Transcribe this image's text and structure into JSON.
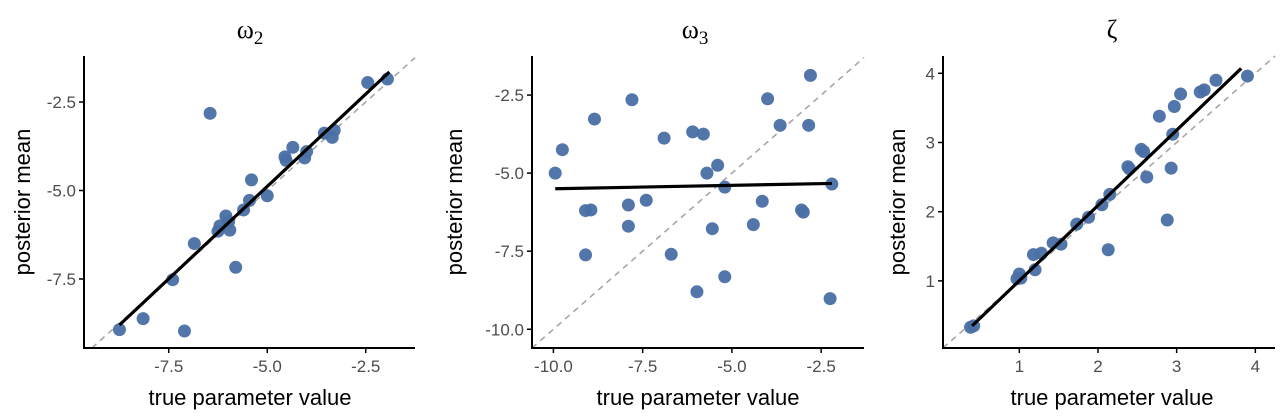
{
  "figure": {
    "point_color": "#4a6fa5",
    "fit_line_color": "#000000",
    "identity_line_color": "#a6a6a6",
    "axis_color": "#000000"
  },
  "chart_data": [
    {
      "type": "scatter",
      "title": "ω2",
      "title_base": "ω",
      "title_sub": "2",
      "xlabel": "true parameter value",
      "ylabel": "posterior mean",
      "xticks": [
        -7.5,
        -5.0,
        -2.5
      ],
      "xtick_labels": [
        "-7.5",
        "-5.0",
        "-2.5"
      ],
      "yticks": [
        -2.5,
        -5.0,
        -7.5
      ],
      "ytick_labels": [
        "-2.5",
        "-5.0",
        "-7.5"
      ],
      "xlim": [
        -9.65,
        -1.25
      ],
      "ylim": [
        -9.45,
        -1.2
      ],
      "grid": false,
      "identity_line": true,
      "fit_line": {
        "x": [
          -8.75,
          -1.9
        ],
        "y": [
          -8.8,
          -1.65
        ]
      },
      "points": [
        {
          "x": -8.75,
          "y": -8.93
        },
        {
          "x": -8.15,
          "y": -8.62
        },
        {
          "x": -7.1,
          "y": -8.97
        },
        {
          "x": -7.4,
          "y": -7.52
        },
        {
          "x": -6.85,
          "y": -6.5
        },
        {
          "x": -5.8,
          "y": -7.17
        },
        {
          "x": -6.45,
          "y": -2.82
        },
        {
          "x": -6.25,
          "y": -6.15
        },
        {
          "x": -6.2,
          "y": -6.0
        },
        {
          "x": -6.05,
          "y": -5.72
        },
        {
          "x": -5.95,
          "y": -6.12
        },
        {
          "x": -5.98,
          "y": -5.88
        },
        {
          "x": -5.6,
          "y": -5.55
        },
        {
          "x": -5.45,
          "y": -5.28
        },
        {
          "x": -5.4,
          "y": -4.7
        },
        {
          "x": -5.0,
          "y": -5.15
        },
        {
          "x": -4.55,
          "y": -4.05
        },
        {
          "x": -4.52,
          "y": -4.15
        },
        {
          "x": -4.35,
          "y": -3.78
        },
        {
          "x": -4.05,
          "y": -4.08
        },
        {
          "x": -4.0,
          "y": -3.9
        },
        {
          "x": -3.55,
          "y": -3.38
        },
        {
          "x": -3.3,
          "y": -3.3
        },
        {
          "x": -3.35,
          "y": -3.5
        },
        {
          "x": -2.45,
          "y": -1.95
        },
        {
          "x": -1.95,
          "y": -1.85
        }
      ]
    },
    {
      "type": "scatter",
      "title": "ω3",
      "title_base": "ω",
      "title_sub": "3",
      "xlabel": "true parameter value",
      "ylabel": "posterior mean",
      "xticks": [
        -10.0,
        -7.5,
        -5.0,
        -2.5
      ],
      "xtick_labels": [
        "-10.0",
        "-7.5",
        "-5.0",
        "-2.5"
      ],
      "yticks": [
        -2.5,
        -5.0,
        -7.5,
        -10.0
      ],
      "ytick_labels": [
        "-2.5",
        "-5.0",
        "-7.5",
        "-10.0"
      ],
      "xlim": [
        -10.6,
        -1.3
      ],
      "ylim": [
        -10.6,
        -1.25
      ],
      "grid": false,
      "identity_line": true,
      "fit_line": {
        "x": [
          -9.95,
          -2.2
        ],
        "y": [
          -5.5,
          -5.33
        ]
      },
      "points": [
        {
          "x": -9.95,
          "y": -5.0
        },
        {
          "x": -9.75,
          "y": -4.25
        },
        {
          "x": -9.1,
          "y": -6.2
        },
        {
          "x": -8.95,
          "y": -6.18
        },
        {
          "x": -9.1,
          "y": -7.62
        },
        {
          "x": -8.85,
          "y": -3.27
        },
        {
          "x": -7.9,
          "y": -6.02
        },
        {
          "x": -7.9,
          "y": -6.7
        },
        {
          "x": -7.8,
          "y": -2.65
        },
        {
          "x": -7.4,
          "y": -5.87
        },
        {
          "x": -6.9,
          "y": -3.88
        },
        {
          "x": -6.7,
          "y": -7.6
        },
        {
          "x": -6.1,
          "y": -3.68
        },
        {
          "x": -5.8,
          "y": -3.75
        },
        {
          "x": -5.98,
          "y": -8.8
        },
        {
          "x": -5.7,
          "y": -5.0
        },
        {
          "x": -5.55,
          "y": -6.78
        },
        {
          "x": -5.4,
          "y": -4.75
        },
        {
          "x": -5.2,
          "y": -5.45
        },
        {
          "x": -5.2,
          "y": -8.32
        },
        {
          "x": -4.4,
          "y": -6.65
        },
        {
          "x": -4.15,
          "y": -5.9
        },
        {
          "x": -4.0,
          "y": -2.62
        },
        {
          "x": -3.65,
          "y": -3.47
        },
        {
          "x": -3.05,
          "y": -6.18
        },
        {
          "x": -3.0,
          "y": -6.25
        },
        {
          "x": -2.85,
          "y": -3.47
        },
        {
          "x": -2.8,
          "y": -1.87
        },
        {
          "x": -2.2,
          "y": -5.35
        },
        {
          "x": -2.25,
          "y": -9.02
        }
      ]
    },
    {
      "type": "scatter",
      "title": "ζ",
      "title_base": "ζ",
      "title_sub": "",
      "xlabel": "true parameter value",
      "ylabel": "posterior mean",
      "xticks": [
        1,
        2,
        3,
        4
      ],
      "xtick_labels": [
        "1",
        "2",
        "3",
        "4"
      ],
      "yticks": [
        1,
        2,
        3,
        4
      ],
      "ytick_labels": [
        "1",
        "2",
        "3",
        "4"
      ],
      "xlim": [
        0.03,
        4.25
      ],
      "ylim": [
        0.03,
        4.25
      ],
      "grid": false,
      "identity_line": true,
      "fit_line": {
        "x": [
          0.4,
          3.82
        ],
        "y": [
          0.35,
          4.07
        ]
      },
      "points": [
        {
          "x": 0.38,
          "y": 0.33
        },
        {
          "x": 0.42,
          "y": 0.35
        },
        {
          "x": 0.97,
          "y": 1.03
        },
        {
          "x": 1.0,
          "y": 1.1
        },
        {
          "x": 1.02,
          "y": 1.04
        },
        {
          "x": 1.18,
          "y": 1.38
        },
        {
          "x": 1.2,
          "y": 1.16
        },
        {
          "x": 1.28,
          "y": 1.4
        },
        {
          "x": 1.43,
          "y": 1.55
        },
        {
          "x": 1.53,
          "y": 1.53
        },
        {
          "x": 1.73,
          "y": 1.82
        },
        {
          "x": 1.88,
          "y": 1.92
        },
        {
          "x": 2.05,
          "y": 2.1
        },
        {
          "x": 2.15,
          "y": 2.25
        },
        {
          "x": 2.13,
          "y": 1.45
        },
        {
          "x": 2.38,
          "y": 2.65
        },
        {
          "x": 2.4,
          "y": 2.62
        },
        {
          "x": 2.55,
          "y": 2.9
        },
        {
          "x": 2.58,
          "y": 2.87
        },
        {
          "x": 2.62,
          "y": 2.5
        },
        {
          "x": 2.78,
          "y": 3.38
        },
        {
          "x": 2.88,
          "y": 1.88
        },
        {
          "x": 2.95,
          "y": 3.12
        },
        {
          "x": 2.97,
          "y": 3.52
        },
        {
          "x": 2.93,
          "y": 2.63
        },
        {
          "x": 3.05,
          "y": 3.7
        },
        {
          "x": 3.3,
          "y": 3.73
        },
        {
          "x": 3.35,
          "y": 3.76
        },
        {
          "x": 3.5,
          "y": 3.9
        },
        {
          "x": 3.9,
          "y": 3.96
        }
      ]
    }
  ]
}
